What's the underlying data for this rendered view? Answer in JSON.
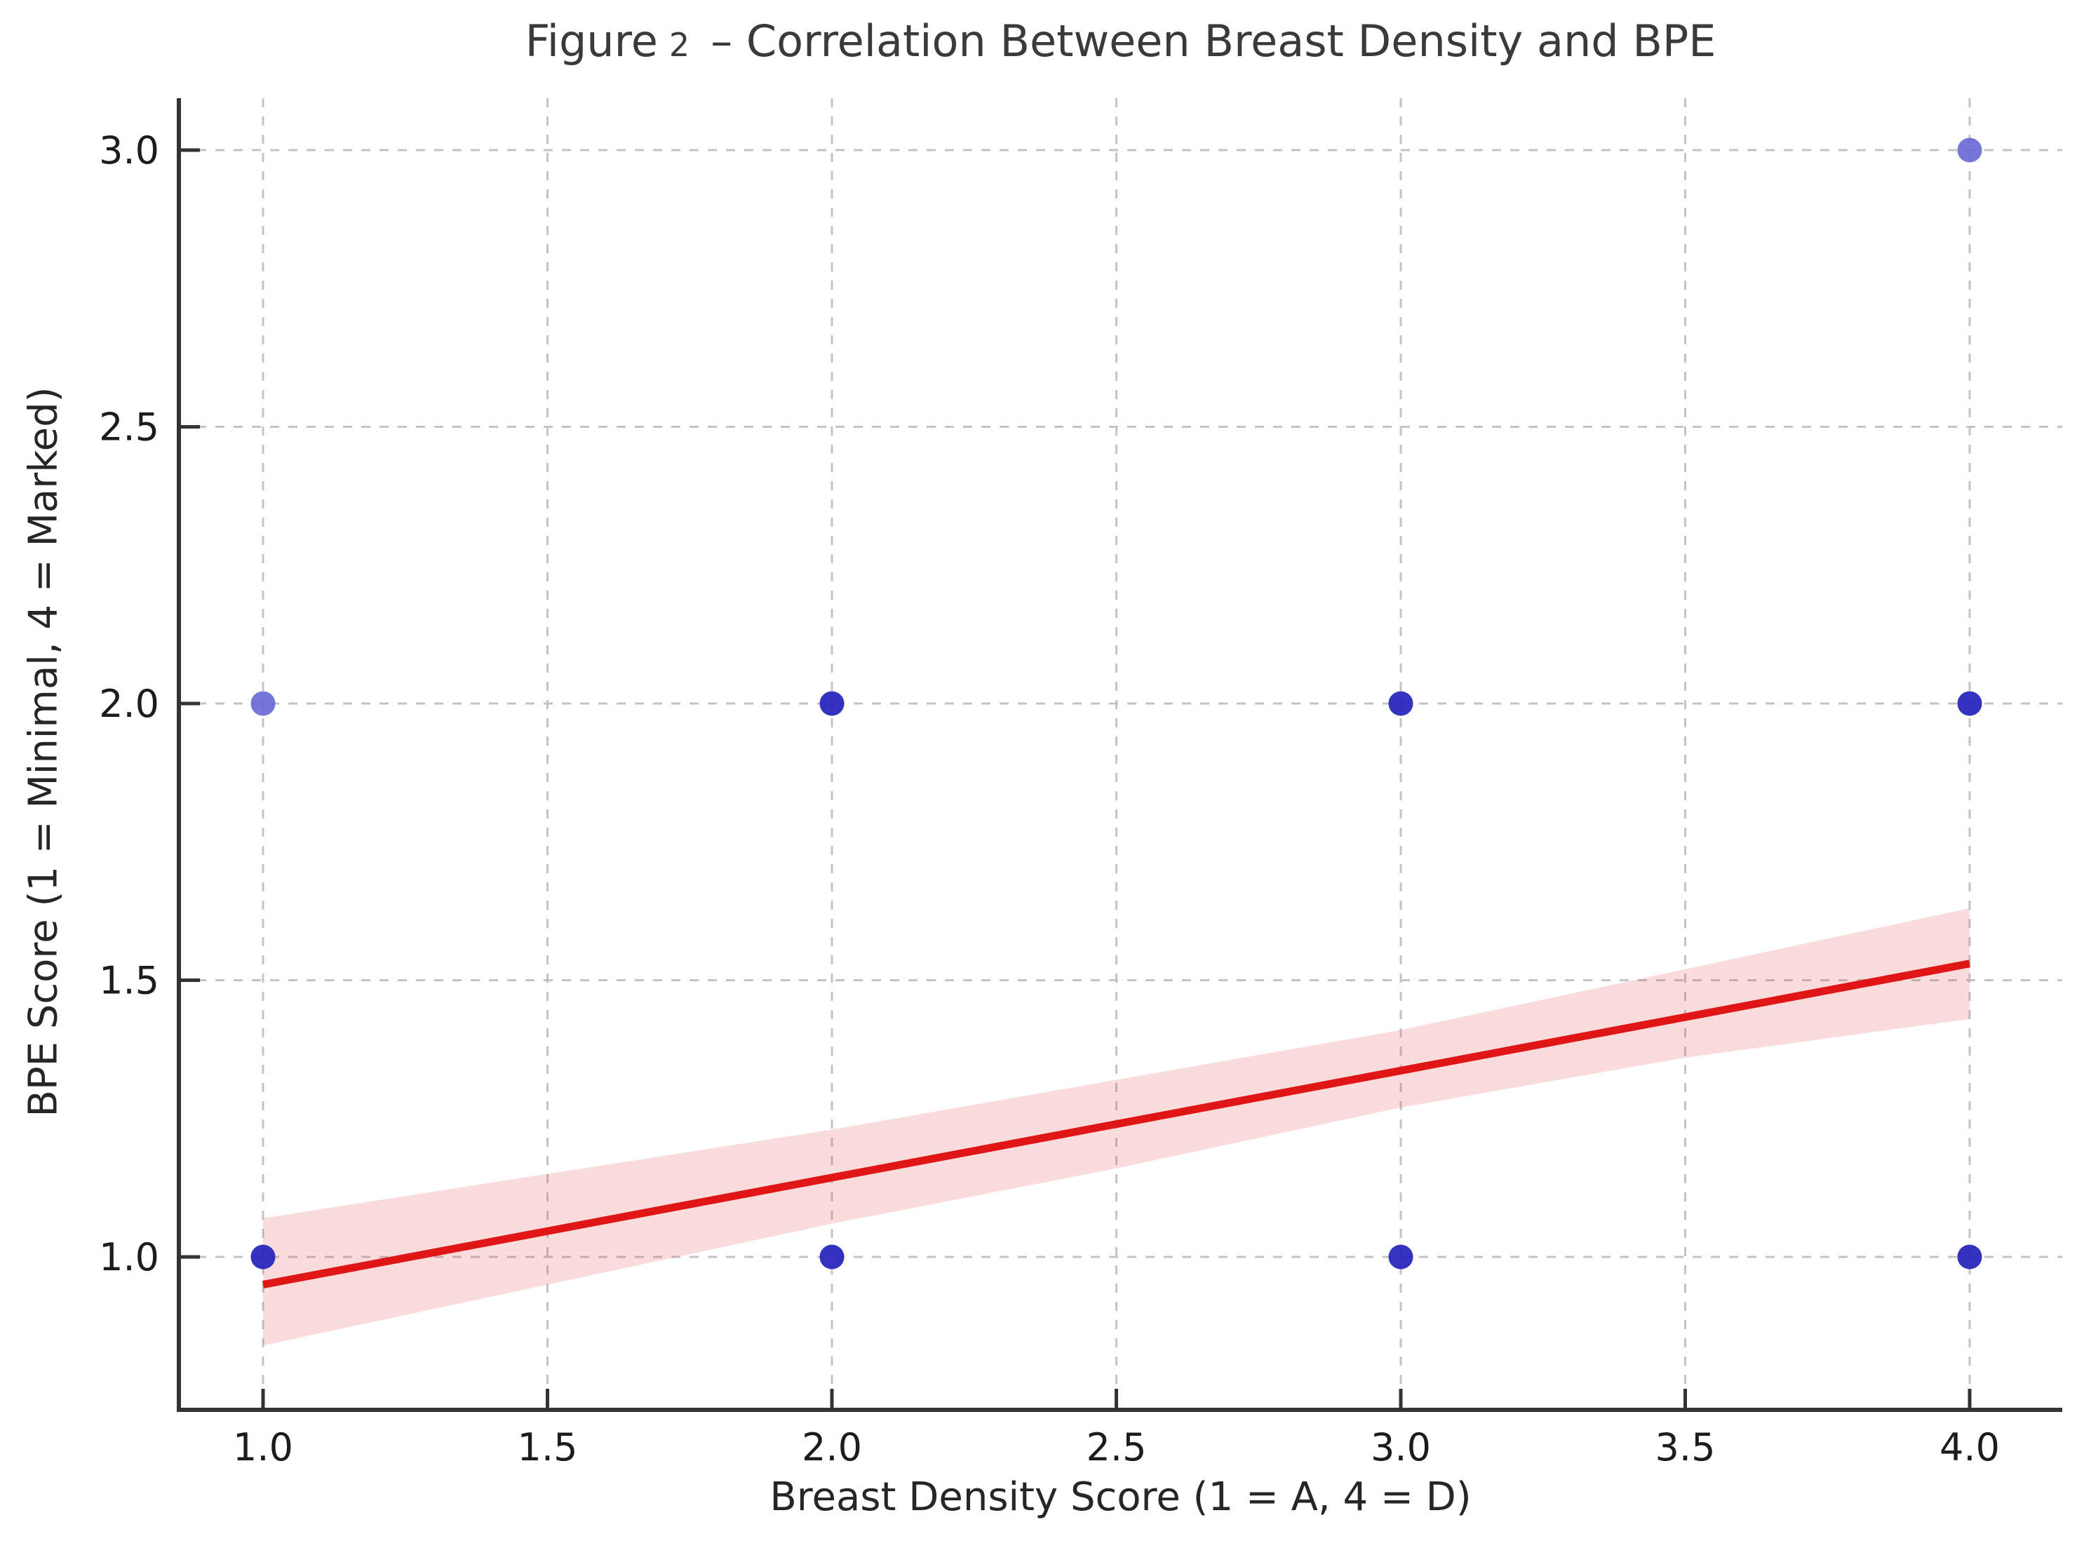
{
  "figure": {
    "title": {
      "prefix": "Figure",
      "number": "2",
      "rest": "– Correlation Between Breast Density and BPE"
    }
  },
  "chart_data": {
    "type": "scatter",
    "title": "Figure 2 – Correlation Between Breast Density and BPE",
    "xlabel": "Breast Density Score (1 = A, 4 = D)",
    "ylabel": "BPE Score (1 = Minimal, 4 = Marked)",
    "xlim": [
      0.85,
      4.16
    ],
    "ylim": [
      0.72,
      3.1
    ],
    "grid": "dashed",
    "legend": null,
    "x_ticks": [
      1.0,
      1.5,
      2.0,
      2.5,
      3.0,
      3.5,
      4.0
    ],
    "x_tick_labels": [
      "1.0",
      "1.5",
      "2.0",
      "2.5",
      "3.0",
      "3.5",
      "4.0"
    ],
    "y_ticks": [
      1.0,
      1.5,
      2.0,
      2.5,
      3.0
    ],
    "y_tick_labels": [
      "1.0",
      "1.5",
      "2.0",
      "2.5",
      "3.0"
    ],
    "points": [
      {
        "x": 1,
        "y": 1,
        "shade": "dark"
      },
      {
        "x": 1,
        "y": 2,
        "shade": "light"
      },
      {
        "x": 2,
        "y": 1,
        "shade": "dark"
      },
      {
        "x": 2,
        "y": 2,
        "shade": "dark"
      },
      {
        "x": 3,
        "y": 1,
        "shade": "dark"
      },
      {
        "x": 3,
        "y": 2,
        "shade": "dark"
      },
      {
        "x": 4,
        "y": 1,
        "shade": "dark"
      },
      {
        "x": 4,
        "y": 2,
        "shade": "dark"
      },
      {
        "x": 4,
        "y": 3,
        "shade": "light"
      }
    ],
    "regression_line": {
      "x": [
        1.0,
        4.0
      ],
      "y": [
        0.95,
        1.53
      ]
    },
    "confidence_band": {
      "x": [
        1.0,
        1.5,
        2.0,
        2.5,
        3.0,
        3.5,
        4.0
      ],
      "upper": [
        1.07,
        1.15,
        1.23,
        1.32,
        1.41,
        1.52,
        1.63
      ],
      "lower": [
        0.84,
        0.95,
        1.06,
        1.16,
        1.27,
        1.36,
        1.43
      ]
    },
    "colors": {
      "point_dark": "#2222bb",
      "point_light": "#6363d4",
      "regression_line": "#e01515",
      "confidence_band_fill": "#f9dada",
      "grid": "#c4c4c4",
      "spine": "#333333",
      "text": "#1c1c1c"
    }
  }
}
